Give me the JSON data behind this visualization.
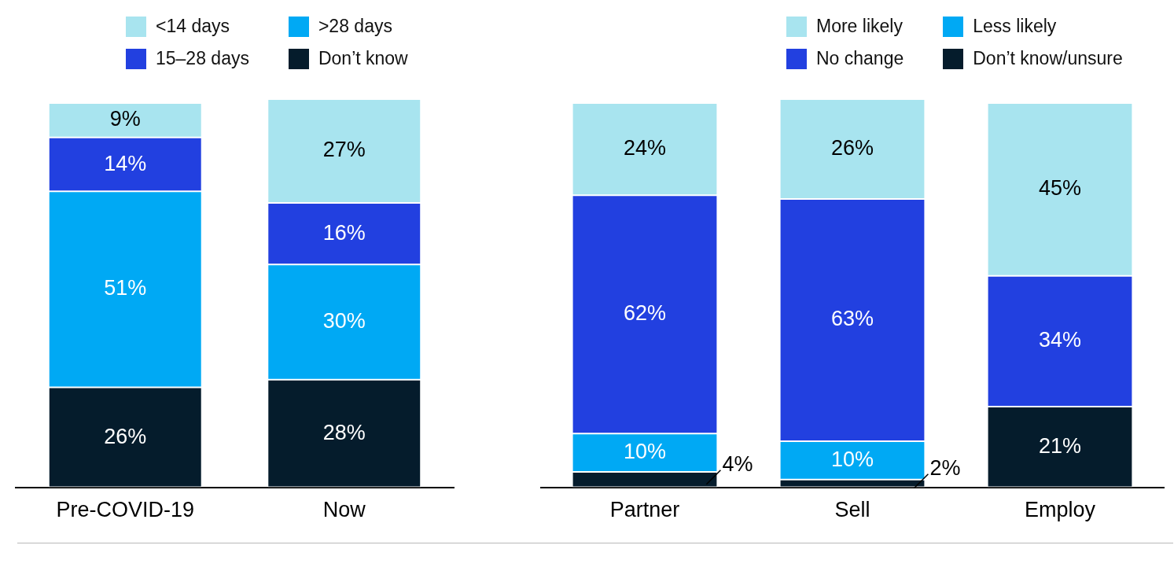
{
  "chart_data": [
    {
      "type": "bar",
      "stacked": true,
      "categories": [
        "Pre-COVID-19",
        "Now"
      ],
      "legend": "top",
      "series": [
        {
          "name": "Don’t know",
          "color": "#051c2c",
          "values": [
            26,
            28
          ],
          "value_labels": [
            "26%",
            "28%"
          ]
        },
        {
          "name": ">28 days",
          "color": "#00a9f4",
          "values": [
            51,
            30
          ],
          "value_labels": [
            "51%",
            "30%"
          ]
        },
        {
          "name": "15–28 days",
          "color": "#2240e0",
          "values": [
            14,
            16
          ],
          "value_labels": [
            "14%",
            "16%"
          ]
        },
        {
          "name": "<14 days",
          "color": "#a8e4ef",
          "values": [
            9,
            27
          ],
          "value_labels": [
            "9%",
            "27%"
          ]
        }
      ]
    },
    {
      "type": "bar",
      "stacked": true,
      "categories": [
        "Partner",
        "Sell",
        "Employ"
      ],
      "legend": "top right",
      "series": [
        {
          "name": "Don’t know/unsure",
          "color": "#051c2c",
          "values": [
            4,
            2,
            21
          ],
          "value_labels": [
            "4%",
            "2%",
            "21%"
          ]
        },
        {
          "name": "Less likely",
          "color": "#00a9f4",
          "values": [
            10,
            10,
            null
          ],
          "value_labels": [
            "10%",
            "10%",
            null
          ]
        },
        {
          "name": "No change",
          "color": "#2240e0",
          "values": [
            62,
            63,
            34
          ],
          "value_labels": [
            "62%",
            "63%",
            "34%"
          ]
        },
        {
          "name": "More likely",
          "color": "#a8e4ef",
          "values": [
            24,
            26,
            45
          ],
          "value_labels": [
            "24%",
            "26%",
            "45%"
          ]
        }
      ]
    }
  ]
}
